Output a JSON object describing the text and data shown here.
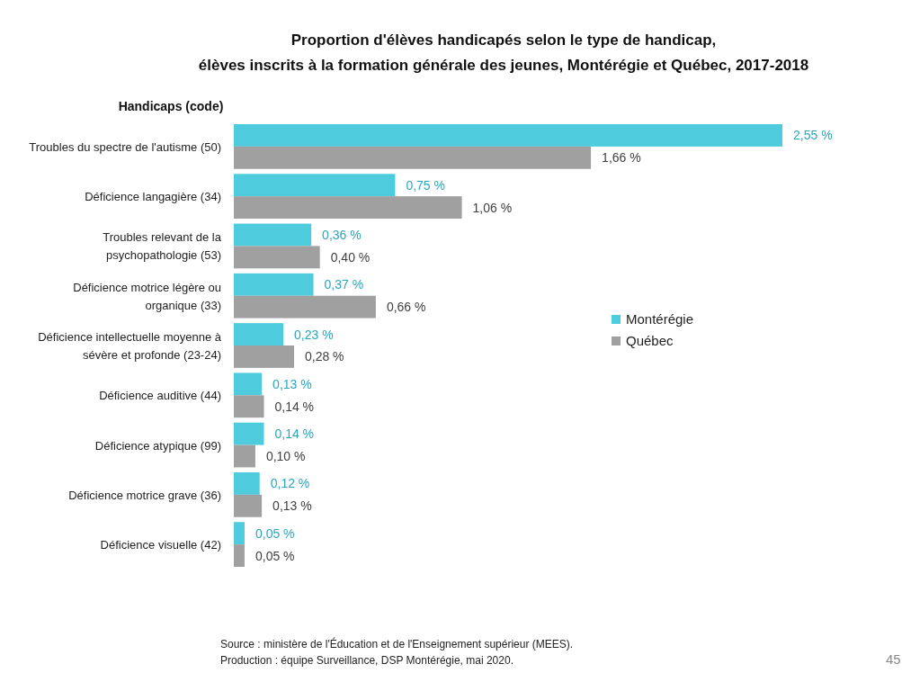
{
  "chart_data": {
    "type": "bar",
    "orientation": "horizontal",
    "title": "Proportion d'élèves handicapés selon le type de handicap, élèves inscrits à la formation générale des jeunes, Montérégie et Québec, 2017-2018",
    "ylabel": "Handicaps (code)",
    "categories": [
      "Troubles du spectre de l'autisme (50)",
      "Déficience langagière (34)",
      "Troubles relevant de la psychopathologie (53)",
      "Déficience motrice légère ou organique (33)",
      "Déficience intellectuelle moyenne à sévère et profonde (23-24)",
      "Déficience auditive (44)",
      "Déficience atypique (99)",
      "Déficience motrice grave (36)",
      "Déficience visuelle (42)"
    ],
    "series": [
      {
        "name": "Montérégie",
        "color": "#4ecbdc",
        "values": [
          2.55,
          0.75,
          0.36,
          0.37,
          0.23,
          0.13,
          0.14,
          0.12,
          0.05
        ],
        "value_labels": [
          "2,55 %",
          "0,75 %",
          "0,36 %",
          "0,37 %",
          "0,23 %",
          "0,13 %",
          "0,14 %",
          "0,12 %",
          "0,05 %"
        ]
      },
      {
        "name": "Québec",
        "color": "#a0a0a0",
        "values": [
          1.66,
          1.06,
          0.4,
          0.66,
          0.28,
          0.14,
          0.1,
          0.13,
          0.05
        ],
        "value_labels": [
          "1,66 %",
          "1,06 %",
          "0,40 %",
          "0,66 %",
          "0,28 %",
          "0,14 %",
          "0,10 %",
          "0,13 %",
          "0,05 %"
        ]
      }
    ],
    "legend": "right",
    "annotations": [
      "Source : ministère de l'Éducation et de l'Enseignement supérieur (MEES).",
      "Production : équipe Surveillance, DSP Montérégie, mai 2020.",
      "45"
    ]
  }
}
